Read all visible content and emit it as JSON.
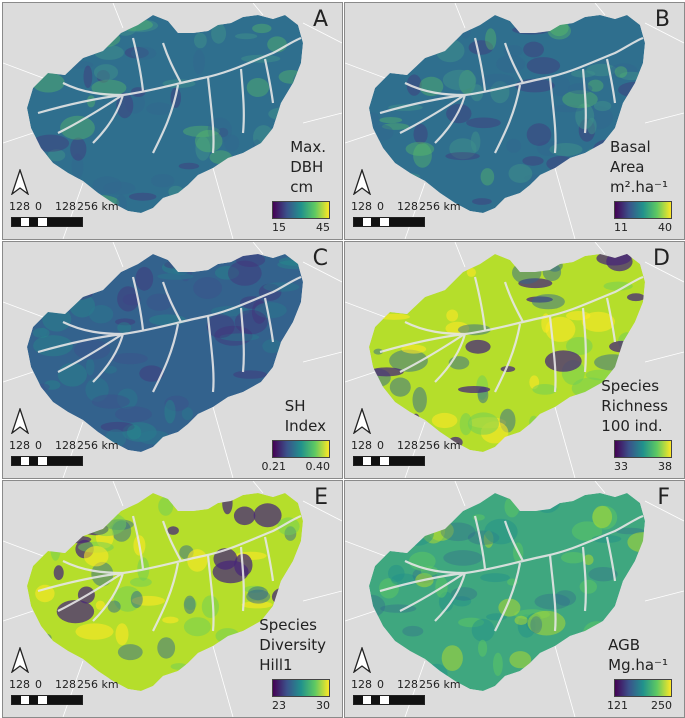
{
  "panels": [
    {
      "letter": "A",
      "legend": [
        "Max.",
        "DBH",
        "cm"
      ],
      "min": "15",
      "max": "45",
      "style": "dbh"
    },
    {
      "letter": "B",
      "legend": [
        "Basal",
        "Area",
        "m².ha⁻¹"
      ],
      "min": "11",
      "max": "40",
      "style": "dbh"
    },
    {
      "letter": "C",
      "legend": [
        "SH",
        "Index"
      ],
      "min": "0.21",
      "max": "0.40",
      "style": "sh"
    },
    {
      "letter": "D",
      "legend": [
        "Species",
        "Richness",
        "100 ind."
      ],
      "min": "33",
      "max": "38",
      "style": "rich"
    },
    {
      "letter": "E",
      "legend": [
        "Species",
        "Diversity",
        "Hill1"
      ],
      "min": "23",
      "max": "30",
      "style": "rich"
    },
    {
      "letter": "F",
      "legend": [
        "AGB",
        "Mg.ha⁻¹"
      ],
      "min": "121",
      "max": "250",
      "style": "agb"
    }
  ],
  "scale": {
    "labels": [
      "128",
      "0",
      "128",
      "256 km"
    ]
  },
  "colors": {
    "background": "#dcdcdc",
    "ramp": [
      "#440154",
      "#3b528b",
      "#21918c",
      "#5ec962",
      "#fde725"
    ],
    "rivers": "#e6e6e6"
  }
}
